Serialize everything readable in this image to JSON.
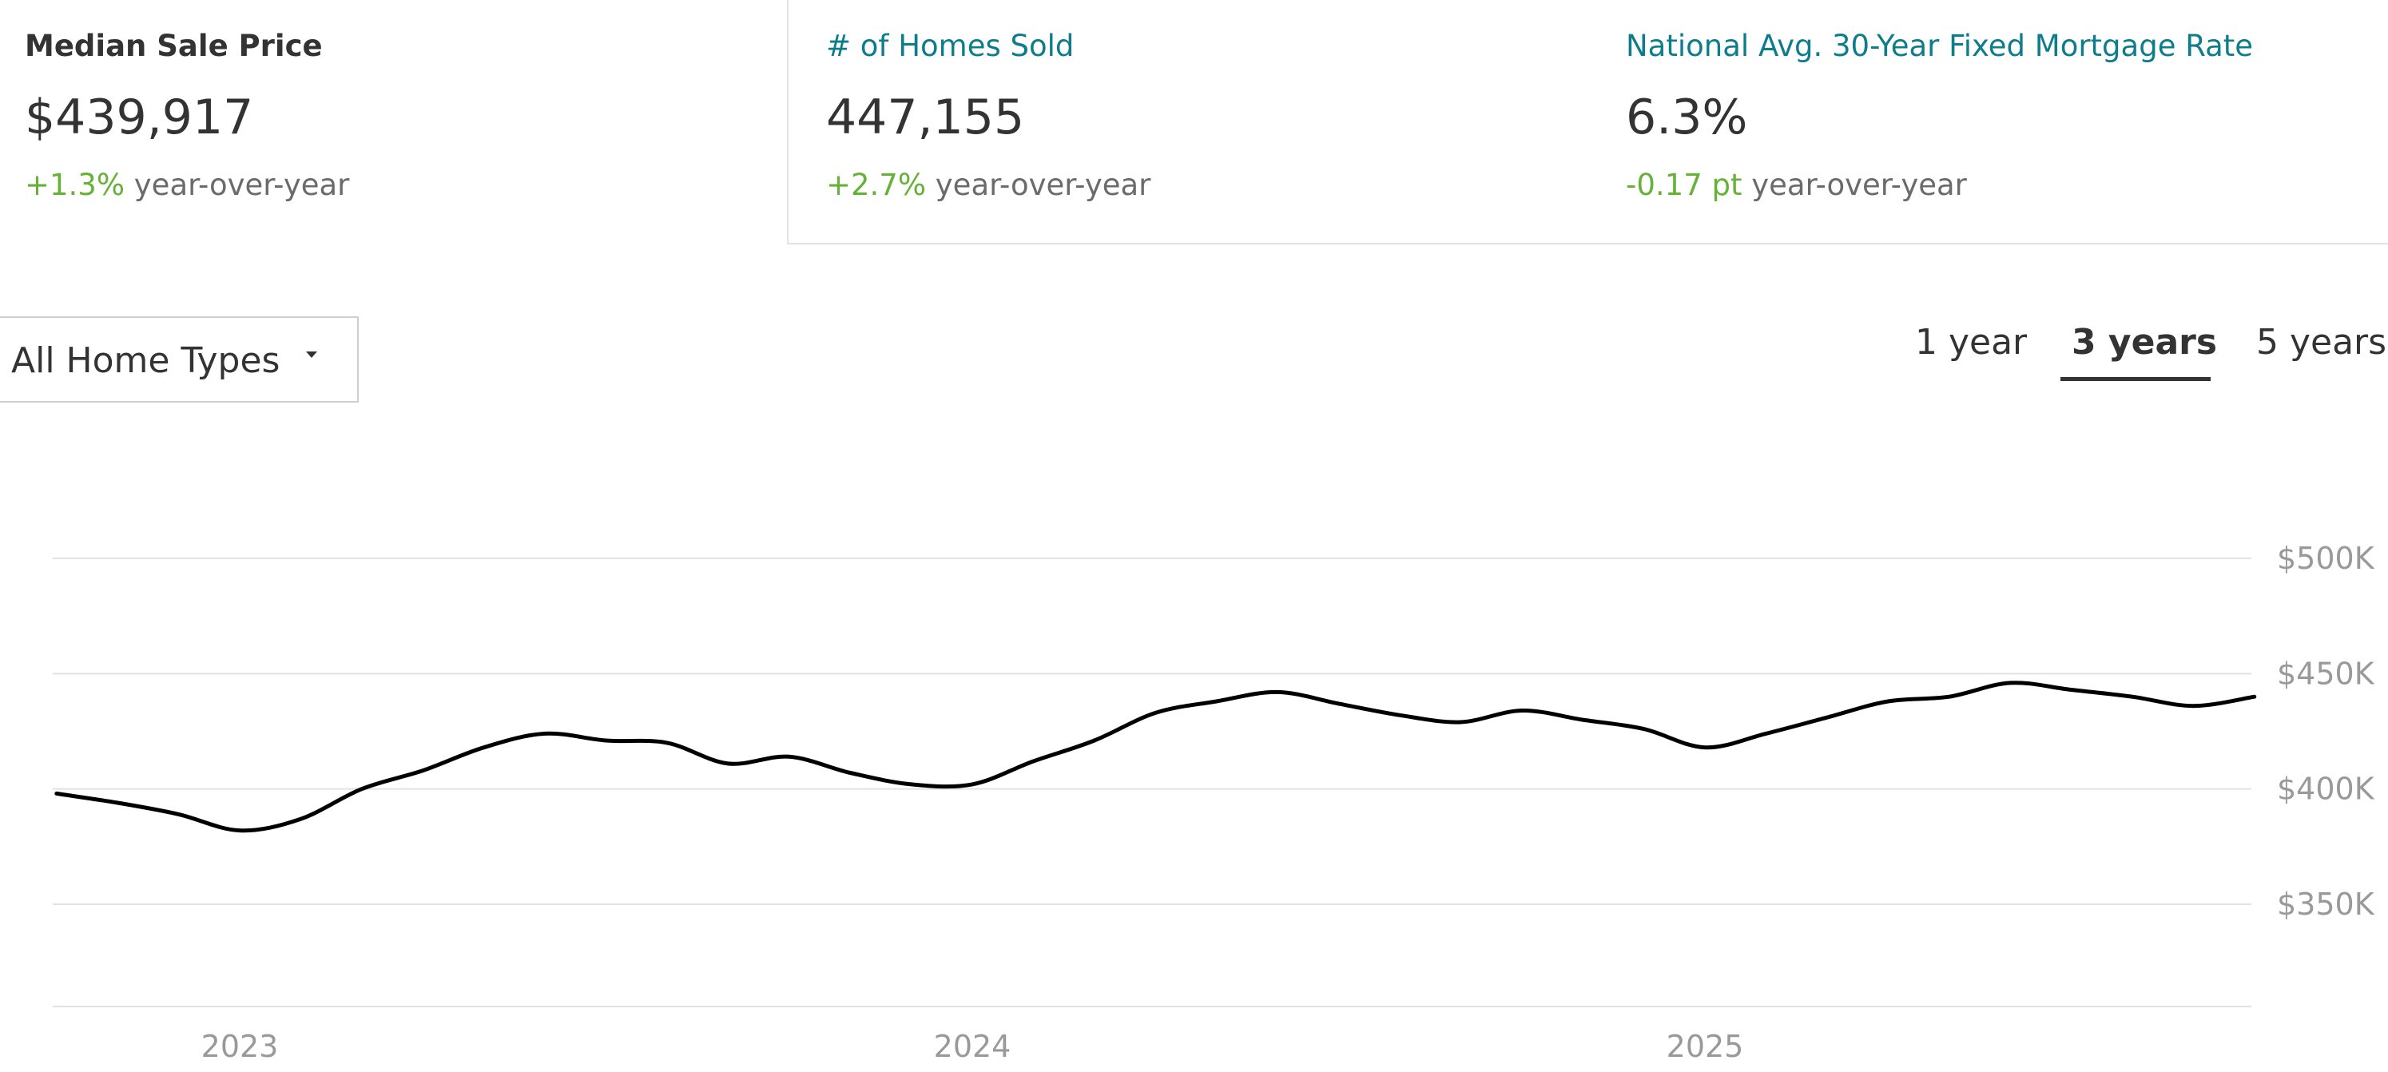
{
  "stats": [
    {
      "label": "Median Sale Price",
      "value": "$439,917",
      "change": "+1.3%",
      "change_suffix": "year-over-year"
    },
    {
      "label": "# of Homes Sold",
      "value": "447,155",
      "change": "+2.7%",
      "change_suffix": "year-over-year"
    },
    {
      "label": "National Avg. 30-Year Fixed Mortgage Rate",
      "value": "6.3%",
      "change": "-0.17 pt",
      "change_suffix": "year-over-year"
    }
  ],
  "filter": {
    "selected": "All Home Types"
  },
  "ranges": {
    "items": [
      "1 year",
      "3 years",
      "5 years"
    ],
    "active": "3 years"
  },
  "colors": {
    "link": "#0d7d8b",
    "positive_change": "#67b139",
    "line": "#000000",
    "grid": "#e2e2e2",
    "axis_text": "#999999"
  },
  "chart_data": {
    "type": "line",
    "title": "",
    "xlabel": "",
    "ylabel": "",
    "x_ticks": [
      "2023",
      "2024",
      "2025"
    ],
    "y_ticks": [
      "$500K",
      "$450K",
      "$400K",
      "$350K"
    ],
    "y_tick_values": [
      500000,
      450000,
      400000,
      350000
    ],
    "ylim": [
      300000,
      510000
    ],
    "grid": true,
    "series": [
      {
        "name": "",
        "values": [
          {
            "x": "2022-10",
            "y": 398000
          },
          {
            "x": "2022-11",
            "y": 394000
          },
          {
            "x": "2022-12",
            "y": 389000
          },
          {
            "x": "2023-01",
            "y": 382000
          },
          {
            "x": "2023-02",
            "y": 387000
          },
          {
            "x": "2023-03",
            "y": 400000
          },
          {
            "x": "2023-04",
            "y": 408000
          },
          {
            "x": "2023-05",
            "y": 418000
          },
          {
            "x": "2023-06",
            "y": 424000
          },
          {
            "x": "2023-07",
            "y": 421000
          },
          {
            "x": "2023-08",
            "y": 420000
          },
          {
            "x": "2023-09",
            "y": 411000
          },
          {
            "x": "2023-10",
            "y": 414000
          },
          {
            "x": "2023-11",
            "y": 407000
          },
          {
            "x": "2023-12",
            "y": 402000
          },
          {
            "x": "2024-01",
            "y": 402000
          },
          {
            "x": "2024-02",
            "y": 412000
          },
          {
            "x": "2024-03",
            "y": 421000
          },
          {
            "x": "2024-04",
            "y": 433000
          },
          {
            "x": "2024-05",
            "y": 438000
          },
          {
            "x": "2024-06",
            "y": 442000
          },
          {
            "x": "2024-07",
            "y": 437000
          },
          {
            "x": "2024-08",
            "y": 432000
          },
          {
            "x": "2024-09",
            "y": 429000
          },
          {
            "x": "2024-10",
            "y": 434000
          },
          {
            "x": "2024-11",
            "y": 430000
          },
          {
            "x": "2024-12",
            "y": 426000
          },
          {
            "x": "2025-01",
            "y": 418000
          },
          {
            "x": "2025-02",
            "y": 424000
          },
          {
            "x": "2025-03",
            "y": 431000
          },
          {
            "x": "2025-04",
            "y": 438000
          },
          {
            "x": "2025-05",
            "y": 440000
          },
          {
            "x": "2025-06",
            "y": 446000
          },
          {
            "x": "2025-07",
            "y": 443000
          },
          {
            "x": "2025-08",
            "y": 440000
          },
          {
            "x": "2025-09",
            "y": 436000
          },
          {
            "x": "2025-10",
            "y": 440000
          }
        ]
      }
    ]
  }
}
